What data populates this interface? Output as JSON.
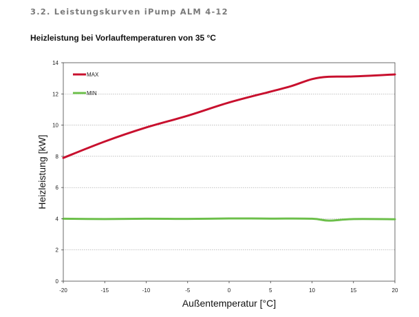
{
  "header": {
    "section_title": "3.2. Leistungskurven iPump ALM 4-12"
  },
  "chart_data": {
    "type": "line",
    "title": "Heizleistung bei Vorlauftemperaturen von 35 °C",
    "xlabel": "Außentemperatur [°C]",
    "ylabel": "Heizleistung [kW]",
    "xlim": [
      -20,
      20
    ],
    "ylim": [
      0,
      14
    ],
    "xticks": [
      -20,
      -15,
      -10,
      -5,
      0,
      5,
      10,
      15,
      20
    ],
    "yticks": [
      0,
      2,
      4,
      6,
      8,
      10,
      12,
      14
    ],
    "grid": true,
    "legend_position": "top-left",
    "series": [
      {
        "name": "MAX",
        "color": "#c8102e",
        "x": [
          -20,
          -15,
          -10,
          -5,
          0,
          5,
          7.5,
          10,
          12,
          15,
          20
        ],
        "y": [
          7.9,
          8.95,
          9.85,
          10.6,
          11.45,
          12.15,
          12.5,
          12.95,
          13.1,
          13.12,
          13.25
        ]
      },
      {
        "name": "MIN",
        "color": "#6cbf4a",
        "x": [
          -20,
          -15,
          -10,
          -5,
          0,
          5,
          10,
          12,
          15,
          20
        ],
        "y": [
          4.0,
          3.98,
          4.0,
          3.99,
          4.02,
          4.01,
          4.0,
          3.88,
          3.98,
          3.97
        ]
      }
    ]
  }
}
